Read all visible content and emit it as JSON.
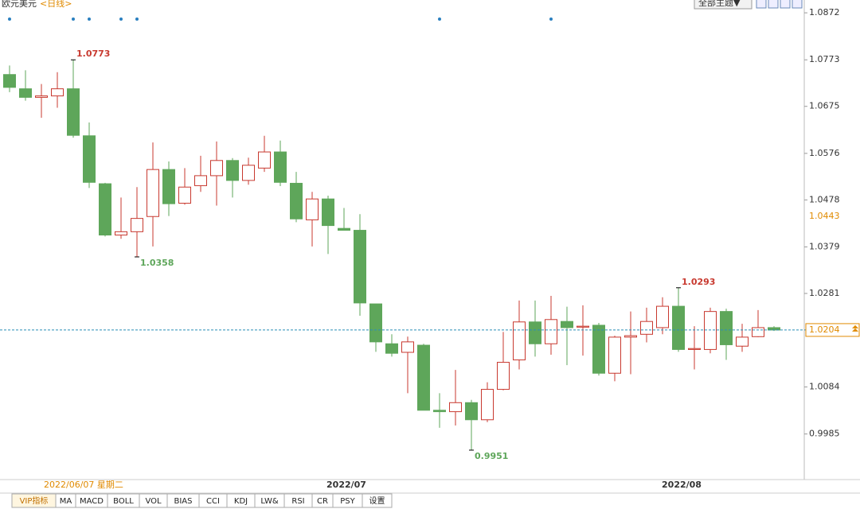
{
  "chart_data": {
    "type": "candlestick",
    "title": "欧元美元",
    "period": "<日线>",
    "theme_button": "全部主题▼",
    "open": [
      1.0742,
      1.0712,
      1.0694,
      1.0697,
      1.0712,
      1.0613,
      1.0512,
      1.0404,
      1.0411,
      1.0443,
      1.0542,
      1.0471,
      1.0508,
      1.0529,
      1.0561,
      1.0519,
      1.0545,
      1.0579,
      1.0513,
      1.0436,
      1.048,
      1.0418,
      1.0414,
      1.0259,
      1.0175,
      1.0157,
      1.0172,
      1.0035,
      1.0032,
      1.0051,
      1.0015,
      1.0079,
      1.0141,
      1.0221,
      1.0175,
      1.0222,
      1.021,
      1.0214,
      1.0113,
      1.0189,
      1.0195,
      1.0209,
      1.0254,
      1.0163,
      1.0163,
      1.0243,
      1.017,
      1.019,
      1.0209
    ],
    "high": [
      1.0761,
      1.0751,
      1.0722,
      1.0747,
      1.0773,
      1.0641,
      1.0514,
      1.0483,
      1.0505,
      1.0599,
      1.0559,
      1.0545,
      1.0571,
      1.0601,
      1.0566,
      1.0567,
      1.0613,
      1.0603,
      1.0537,
      1.0495,
      1.0487,
      1.0461,
      1.0448,
      1.0259,
      1.0195,
      1.019,
      1.0175,
      1.0071,
      1.012,
      1.0057,
      1.0094,
      1.02,
      1.0266,
      1.0266,
      1.0276,
      1.0253,
      1.0256,
      1.0219,
      1.0192,
      1.0243,
      1.0251,
      1.0273,
      1.0293,
      1.0212,
      1.0251,
      1.0249,
      1.0217,
      1.0246,
      1.0212
    ],
    "low": [
      1.0705,
      1.0687,
      1.0651,
      1.0672,
      1.0609,
      1.0503,
      1.0401,
      1.0396,
      1.0358,
      1.038,
      1.0444,
      1.0468,
      1.0495,
      1.0466,
      1.0483,
      1.051,
      1.0537,
      1.0507,
      1.0431,
      1.038,
      1.0364,
      1.0414,
      1.0234,
      1.0158,
      1.0148,
      1.0071,
      1.0035,
      0.9998,
      1.0003,
      0.9951,
      1.001,
      1.0077,
      1.0121,
      1.0148,
      1.0152,
      1.013,
      1.015,
      1.0108,
      1.0096,
      1.0111,
      1.0178,
      1.0195,
      1.0158,
      1.0121,
      1.0155,
      1.0141,
      1.0158,
      1.0189,
      1.0202
    ],
    "close": [
      1.0715,
      1.0694,
      1.0697,
      1.0712,
      1.0614,
      1.0515,
      1.0404,
      1.0411,
      1.0439,
      1.0542,
      1.047,
      1.0505,
      1.0529,
      1.0561,
      1.0519,
      1.0551,
      1.0579,
      1.0515,
      1.0438,
      1.048,
      1.0424,
      1.0414,
      1.0261,
      1.0179,
      1.0155,
      1.0179,
      1.0035,
      1.0032,
      1.0051,
      1.0015,
      1.0079,
      1.0136,
      1.0221,
      1.0175,
      1.0226,
      1.0209,
      1.0212,
      1.0113,
      1.0189,
      1.0192,
      1.0222,
      1.0254,
      1.0163,
      1.0165,
      1.0243,
      1.0173,
      1.0189,
      1.0209,
      1.0204
    ],
    "up_color": "#c8392f",
    "down_color": "#5ea65a",
    "ylim": [
      0.9889,
      1.0899
    ],
    "yticks": [
      1.0872,
      1.0773,
      1.0675,
      1.0576,
      1.0478,
      1.0379,
      1.0281,
      1.0084,
      0.9985
    ],
    "annotations": [
      1.0773,
      1.0358,
      0.9951,
      1.0293
    ],
    "level": 1.0443,
    "current_price": 1.0204,
    "date_labels": [
      "2022/06/07 星期二",
      "2022/07",
      "2022/08"
    ],
    "tabs": [
      "VIP指标",
      "MA",
      "MACD",
      "BOLL",
      "VOL",
      "BIAS",
      "CCI",
      "KDJ",
      "LW&",
      "RSI",
      "CR",
      "PSY",
      "设置"
    ]
  }
}
